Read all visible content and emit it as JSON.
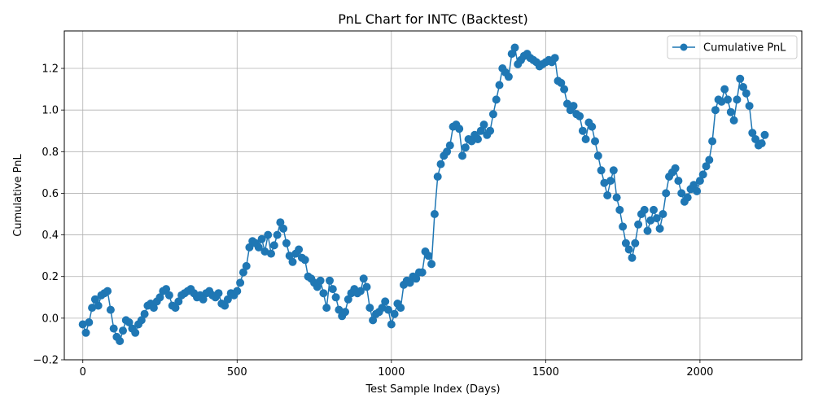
{
  "chart_data": {
    "type": "line",
    "title": "PnL Chart for INTC (Backtest)",
    "xlabel": "Test Sample Index (Days)",
    "ylabel": "Cumulative PnL",
    "xlim": [
      -60,
      2330
    ],
    "ylim": [
      -0.2,
      1.38
    ],
    "x_ticks": [
      0,
      500,
      1000,
      1500,
      2000
    ],
    "x_tick_labels": [
      "0",
      "500",
      "1000",
      "1500",
      "2000"
    ],
    "y_ticks": [
      -0.2,
      0.0,
      0.2,
      0.4,
      0.6,
      0.8,
      1.0,
      1.2
    ],
    "y_tick_labels": [
      "−0.2",
      "0.0",
      "0.2",
      "0.4",
      "0.6",
      "0.8",
      "1.0",
      "1.2"
    ],
    "grid": true,
    "legend_position": "top-right",
    "color": "#1f77b4",
    "series": [
      {
        "name": "Cumulative PnL",
        "marker": "circle",
        "x": [
          0,
          10,
          20,
          30,
          40,
          50,
          60,
          70,
          80,
          90,
          100,
          110,
          120,
          130,
          140,
          150,
          160,
          170,
          180,
          190,
          200,
          210,
          220,
          230,
          240,
          250,
          260,
          270,
          280,
          290,
          300,
          310,
          320,
          330,
          340,
          350,
          360,
          370,
          380,
          390,
          400,
          410,
          420,
          430,
          440,
          450,
          460,
          470,
          480,
          490,
          500,
          510,
          520,
          530,
          540,
          550,
          560,
          570,
          580,
          590,
          600,
          610,
          620,
          630,
          640,
          650,
          660,
          670,
          680,
          690,
          700,
          710,
          720,
          730,
          740,
          750,
          760,
          770,
          780,
          790,
          800,
          810,
          820,
          830,
          840,
          850,
          860,
          870,
          880,
          890,
          900,
          910,
          920,
          930,
          940,
          950,
          960,
          970,
          980,
          990,
          1000,
          1010,
          1020,
          1030,
          1040,
          1050,
          1060,
          1070,
          1080,
          1090,
          1100,
          1110,
          1120,
          1130,
          1140,
          1150,
          1160,
          1170,
          1180,
          1190,
          1200,
          1210,
          1220,
          1230,
          1240,
          1250,
          1260,
          1270,
          1280,
          1290,
          1300,
          1310,
          1320,
          1330,
          1340,
          1350,
          1360,
          1370,
          1380,
          1390,
          1400,
          1410,
          1420,
          1430,
          1440,
          1450,
          1460,
          1470,
          1480,
          1490,
          1500,
          1510,
          1520,
          1530,
          1540,
          1550,
          1560,
          1570,
          1580,
          1590,
          1600,
          1610,
          1620,
          1630,
          1640,
          1650,
          1660,
          1670,
          1680,
          1690,
          1700,
          1710,
          1720,
          1730,
          1740,
          1750,
          1760,
          1770,
          1780,
          1790,
          1800,
          1810,
          1820,
          1830,
          1840,
          1850,
          1860,
          1870,
          1880,
          1890,
          1900,
          1910,
          1920,
          1930,
          1940,
          1950,
          1960,
          1970,
          1980,
          1990,
          2000,
          2010,
          2020,
          2030,
          2040,
          2050,
          2060,
          2070,
          2080,
          2090,
          2100,
          2110,
          2120,
          2130,
          2140,
          2150,
          2160,
          2170,
          2180,
          2190,
          2200,
          2210
        ],
        "y": [
          -0.03,
          -0.07,
          -0.02,
          0.05,
          0.09,
          0.06,
          0.11,
          0.12,
          0.13,
          0.04,
          -0.05,
          -0.09,
          -0.11,
          -0.06,
          -0.01,
          -0.02,
          -0.05,
          -0.07,
          -0.03,
          -0.01,
          0.02,
          0.06,
          0.07,
          0.05,
          0.08,
          0.1,
          0.13,
          0.14,
          0.11,
          0.06,
          0.05,
          0.08,
          0.11,
          0.12,
          0.13,
          0.14,
          0.12,
          0.1,
          0.11,
          0.09,
          0.12,
          0.13,
          0.11,
          0.1,
          0.12,
          0.07,
          0.06,
          0.09,
          0.12,
          0.11,
          0.13,
          0.17,
          0.22,
          0.25,
          0.34,
          0.37,
          0.36,
          0.34,
          0.38,
          0.32,
          0.4,
          0.31,
          0.35,
          0.4,
          0.46,
          0.43,
          0.36,
          0.3,
          0.27,
          0.31,
          0.33,
          0.29,
          0.28,
          0.2,
          0.19,
          0.17,
          0.15,
          0.18,
          0.12,
          0.05,
          0.18,
          0.14,
          0.1,
          0.04,
          0.01,
          0.03,
          0.09,
          0.12,
          0.14,
          0.12,
          0.13,
          0.19,
          0.15,
          0.05,
          -0.01,
          0.02,
          0.03,
          0.05,
          0.08,
          0.04,
          -0.03,
          0.02,
          0.07,
          0.05,
          0.16,
          0.18,
          0.17,
          0.2,
          0.19,
          0.22,
          0.22,
          0.32,
          0.3,
          0.26,
          0.5,
          0.68,
          0.74,
          0.78,
          0.8,
          0.83,
          0.92,
          0.93,
          0.91,
          0.78,
          0.82,
          0.86,
          0.85,
          0.88,
          0.86,
          0.9,
          0.93,
          0.88,
          0.9,
          0.98,
          1.05,
          1.12,
          1.2,
          1.18,
          1.16,
          1.27,
          1.3,
          1.22,
          1.24,
          1.26,
          1.27,
          1.25,
          1.24,
          1.23,
          1.21,
          1.22,
          1.23,
          1.24,
          1.23,
          1.25,
          1.14,
          1.13,
          1.1,
          1.03,
          1.0,
          1.02,
          0.98,
          0.97,
          0.9,
          0.86,
          0.94,
          0.92,
          0.85,
          0.78,
          0.71,
          0.65,
          0.59,
          0.66,
          0.71,
          0.58,
          0.52,
          0.44,
          0.36,
          0.33,
          0.29,
          0.36,
          0.45,
          0.5,
          0.52,
          0.42,
          0.47,
          0.52,
          0.48,
          0.43,
          0.5,
          0.6,
          0.68,
          0.7,
          0.72,
          0.66,
          0.6,
          0.56,
          0.58,
          0.62,
          0.64,
          0.61,
          0.66,
          0.69,
          0.73,
          0.76,
          0.85,
          1.0,
          1.05,
          1.04,
          1.1,
          1.05,
          0.99,
          0.95,
          1.05,
          1.15,
          1.11,
          1.08,
          1.02,
          0.89,
          0.86,
          0.83,
          0.84,
          0.88
        ]
      }
    ]
  }
}
